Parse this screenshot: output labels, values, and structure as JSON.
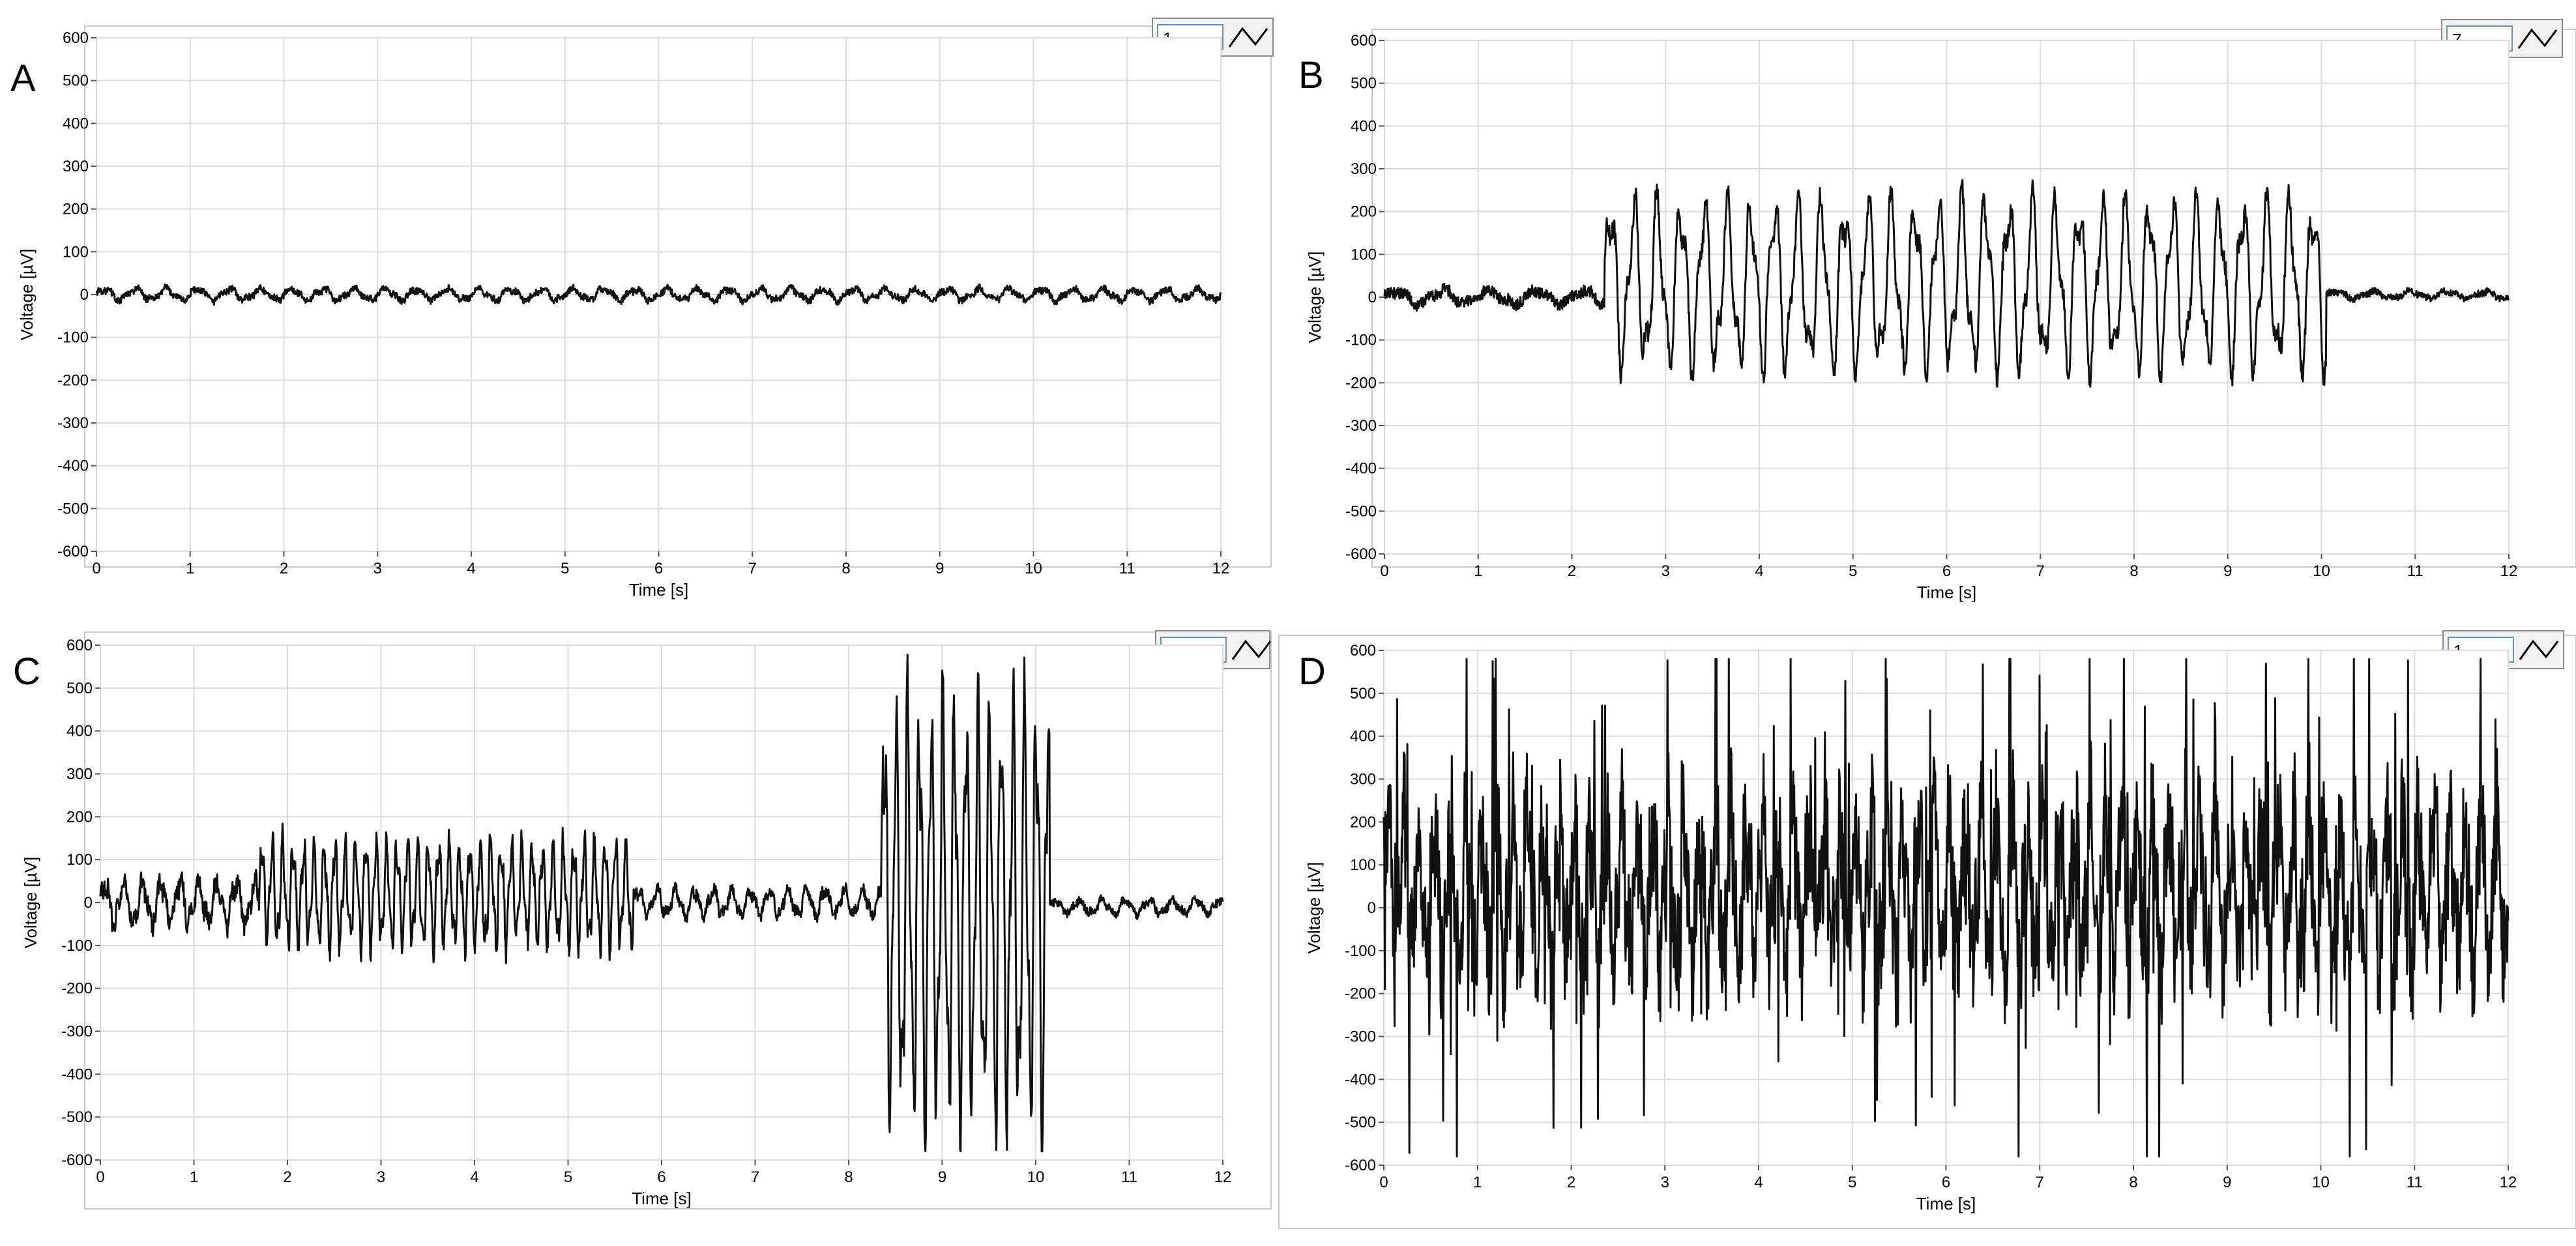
{
  "figure": {
    "background": "#ffffff",
    "frame_color": "#9a9a9a",
    "grid_color": "#dcdcdc",
    "trace_color": "#111111"
  },
  "chart_data": [
    {
      "panel_label": "A",
      "legend_value": "1",
      "legend_icon": "waveform-icon",
      "type": "line",
      "xlabel": "Time [s]",
      "ylabel": "Voltage [µV]",
      "xlim": [
        0,
        12
      ],
      "ylim": [
        -600,
        600
      ],
      "xticks": [
        0,
        1,
        2,
        3,
        4,
        5,
        6,
        7,
        8,
        9,
        10,
        11,
        12
      ],
      "yticks": [
        -600,
        -500,
        -400,
        -300,
        -200,
        -100,
        0,
        100,
        200,
        300,
        400,
        500,
        600
      ],
      "grid": true,
      "segments": [
        {
          "t0": 0.0,
          "t1": 12.0,
          "mean": 0,
          "amp": 12,
          "freq": 3.0,
          "noise": 8
        }
      ]
    },
    {
      "panel_label": "B",
      "legend_value": "7",
      "legend_icon": "waveform-icon",
      "type": "line",
      "xlabel": "Time [s]",
      "ylabel": "Voltage [µV]",
      "xlim": [
        0,
        12
      ],
      "ylim": [
        -600,
        600
      ],
      "xticks": [
        0,
        1,
        2,
        3,
        4,
        5,
        6,
        7,
        8,
        9,
        10,
        11,
        12
      ],
      "yticks": [
        -600,
        -500,
        -400,
        -300,
        -200,
        -100,
        0,
        100,
        200,
        300,
        400,
        500,
        600
      ],
      "grid": true,
      "segments": [
        {
          "t0": 0.0,
          "t1": 2.35,
          "mean": 0,
          "amp": 15,
          "freq": 2.0,
          "noise": 14
        },
        {
          "t0": 2.35,
          "t1": 10.05,
          "mean": 30,
          "amp": 170,
          "freq": 4.0,
          "noise": 25
        },
        {
          "t0": 10.05,
          "t1": 12.0,
          "mean": 5,
          "amp": 8,
          "freq": 2.5,
          "noise": 8
        }
      ]
    },
    {
      "panel_label": "C",
      "legend_value": "1",
      "legend_icon": "waveform-icon",
      "type": "line",
      "xlabel": "Time [s]",
      "ylabel": "Voltage [µV]",
      "xlim": [
        0,
        12
      ],
      "ylim": [
        -600,
        600
      ],
      "xticks": [
        0,
        1,
        2,
        3,
        4,
        5,
        6,
        7,
        8,
        9,
        10,
        11,
        12
      ],
      "yticks": [
        -600,
        -500,
        -400,
        -300,
        -200,
        -100,
        0,
        100,
        200,
        300,
        400,
        500,
        600
      ],
      "grid": true,
      "segments": [
        {
          "t0": 0.0,
          "t1": 1.7,
          "mean": 0,
          "amp": 45,
          "freq": 5.0,
          "noise": 25
        },
        {
          "t0": 1.7,
          "t1": 5.7,
          "mean": 20,
          "amp": 105,
          "freq": 9.0,
          "noise": 25
        },
        {
          "t0": 5.7,
          "t1": 8.35,
          "mean": 0,
          "amp": 28,
          "freq": 5.0,
          "noise": 15
        },
        {
          "t0": 8.35,
          "t1": 10.15,
          "mean": -20,
          "amp": 420,
          "freq": 8.0,
          "noise": 60
        },
        {
          "t0": 10.15,
          "t1": 12.0,
          "mean": -10,
          "amp": 14,
          "freq": 4.0,
          "noise": 10
        }
      ]
    },
    {
      "panel_label": "D",
      "legend_value": "1",
      "legend_icon": "waveform-icon",
      "type": "line",
      "xlabel": "Time [s]",
      "ylabel": "Voltage [µV]",
      "xlim": [
        0,
        12
      ],
      "ylim": [
        -600,
        600
      ],
      "xticks": [
        0,
        1,
        2,
        3,
        4,
        5,
        6,
        7,
        8,
        9,
        10,
        11,
        12
      ],
      "yticks": [
        -600,
        -500,
        -400,
        -300,
        -200,
        -100,
        0,
        100,
        200,
        300,
        400,
        500,
        600
      ],
      "grid": true,
      "segments": [
        {
          "t0": 0.0,
          "t1": 12.0,
          "mean": 40,
          "amp": 150,
          "freq": 6.0,
          "noise": 150,
          "spikes": true
        }
      ]
    }
  ]
}
